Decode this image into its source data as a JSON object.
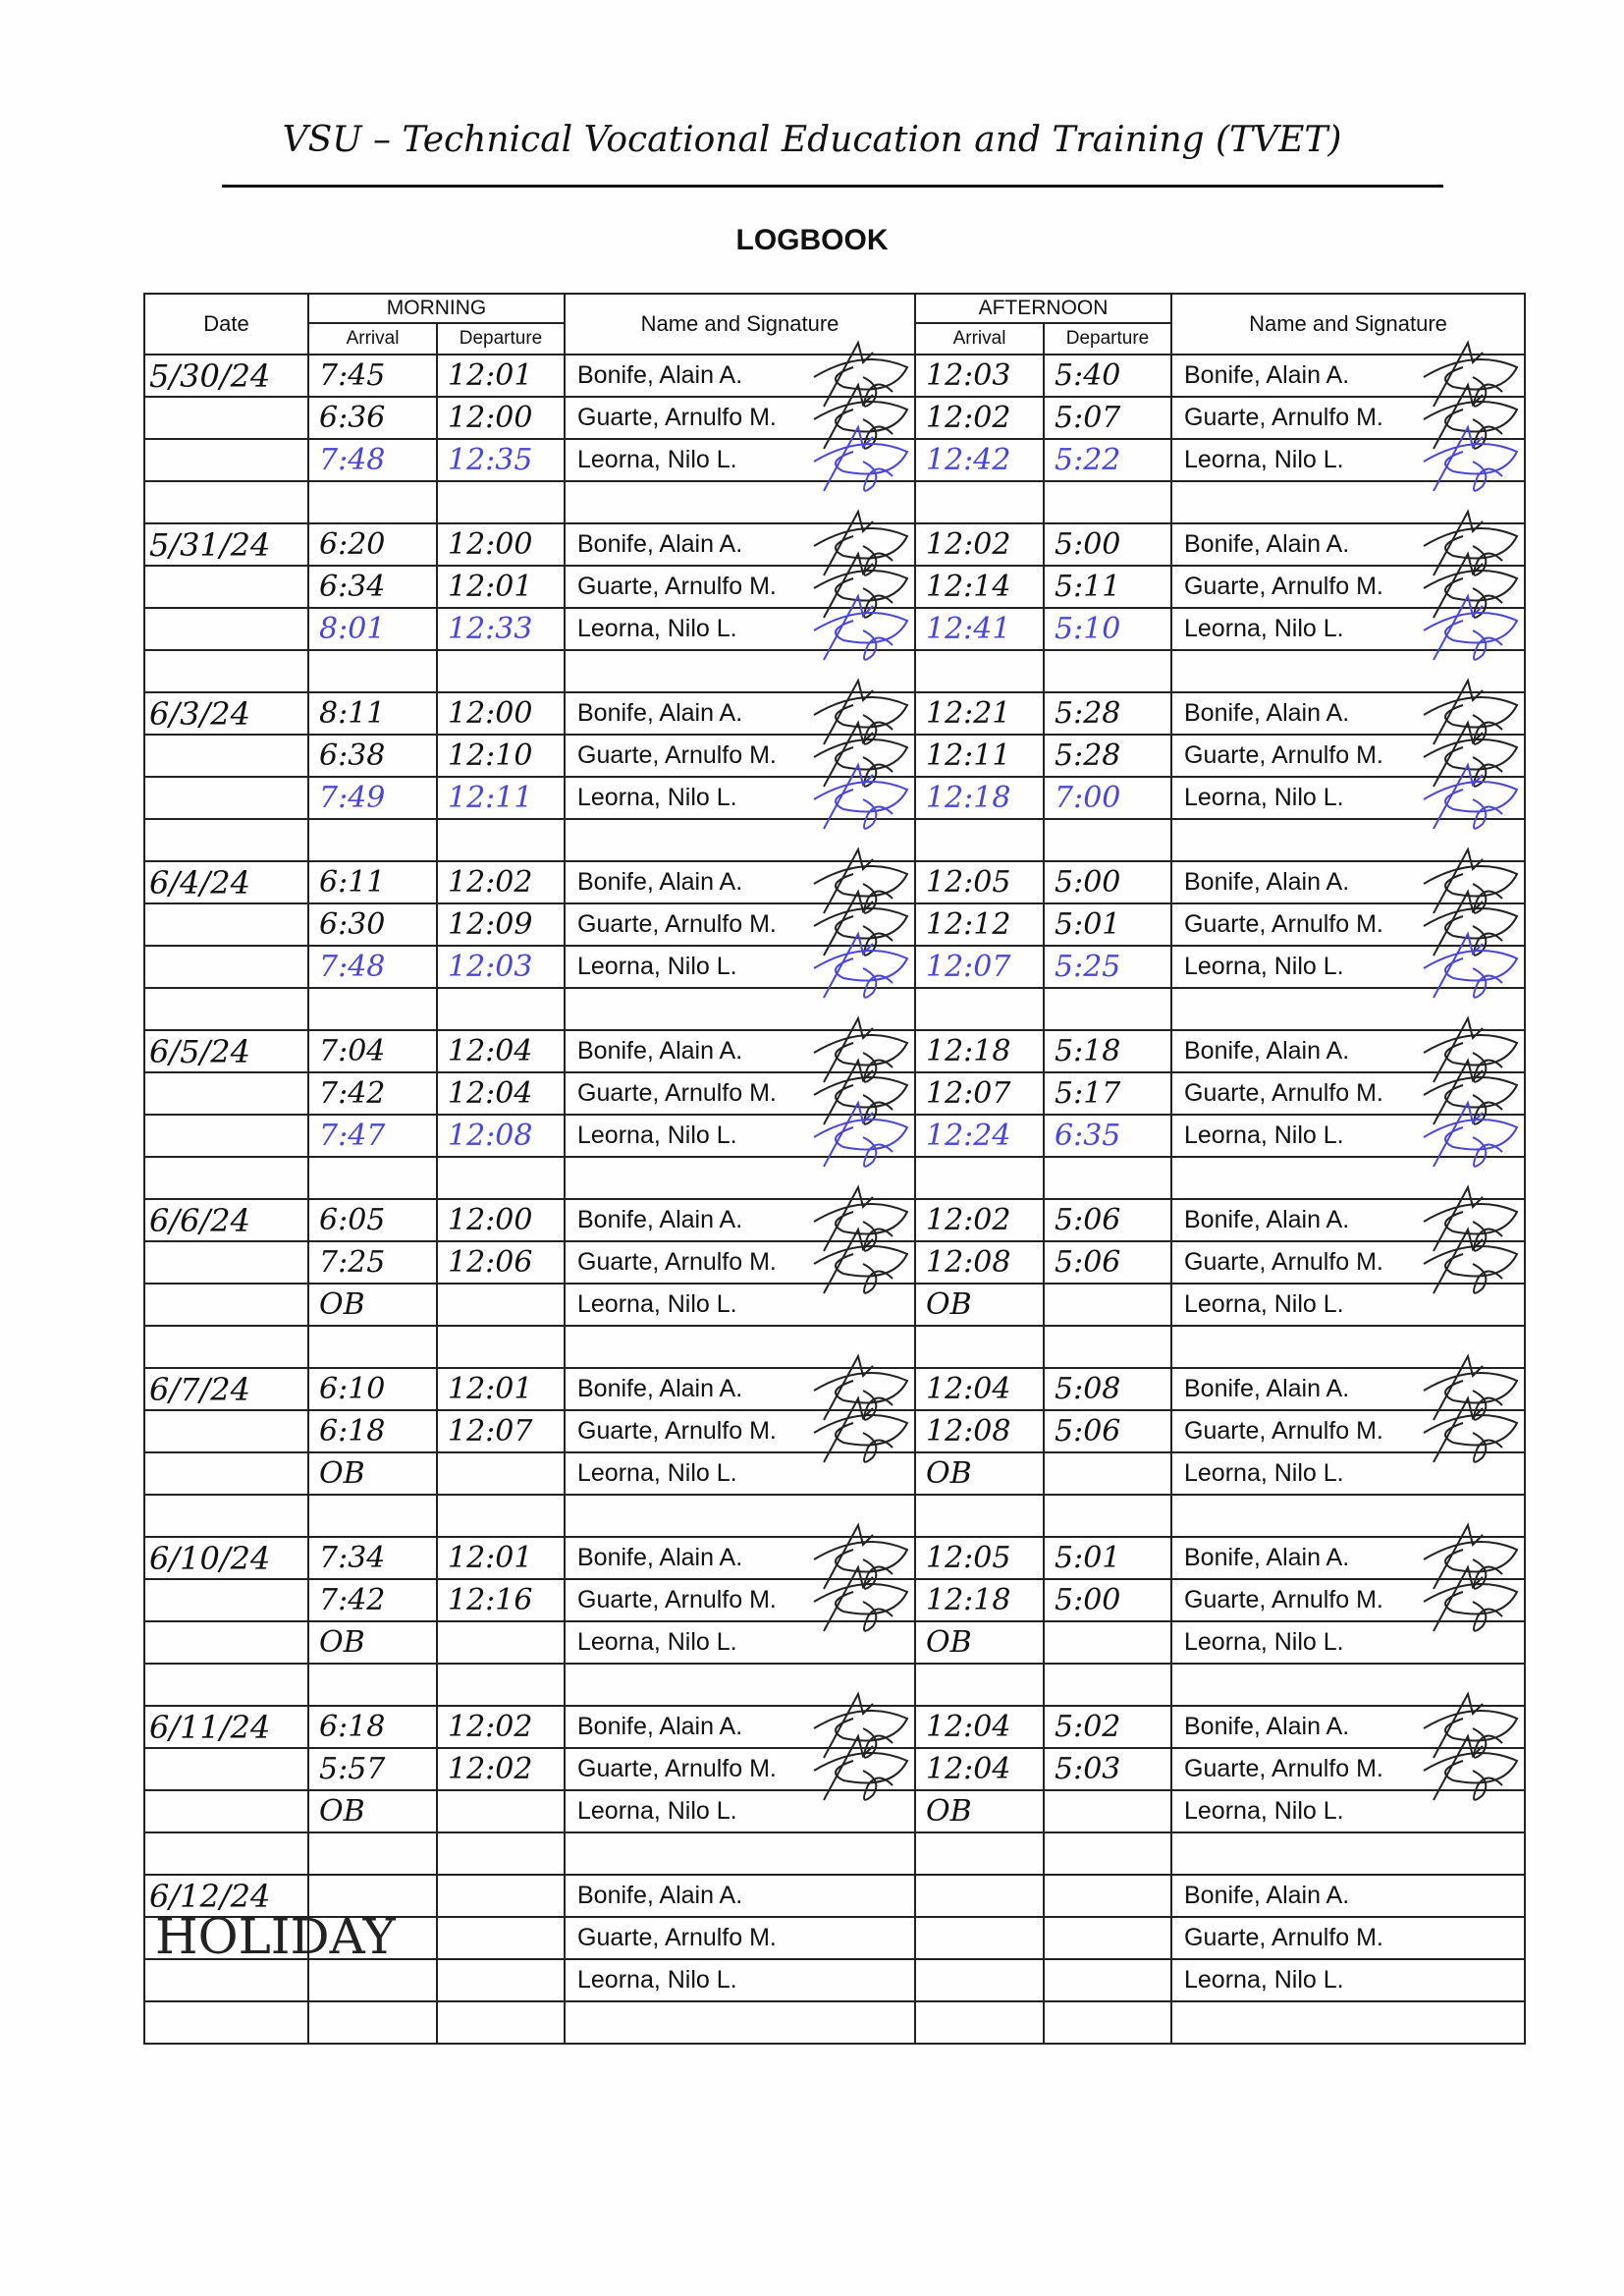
{
  "header": {
    "title": "VSU – Technical Vocational Education and Training (TVET)",
    "subtitle": "LOGBOOK"
  },
  "columns": {
    "date": "Date",
    "morning": "MORNING",
    "afternoon": "AFTERNOON",
    "arrival": "Arrival",
    "departure": "Departure",
    "name_sig": "Name and Signature"
  },
  "colors": {
    "black_ink": "#111111",
    "blue_ink": "#4b47d6"
  },
  "entries": [
    {
      "date": "5/30/24",
      "rows": [
        {
          "name": "Bonife, Alain A.",
          "am_arr": "7:45",
          "am_dep": "12:01",
          "pm_arr": "12:03",
          "pm_dep": "5:40",
          "ink": "black",
          "signed": true
        },
        {
          "name": "Guarte, Arnulfo M.",
          "am_arr": "6:36",
          "am_dep": "12:00",
          "pm_arr": "12:02",
          "pm_dep": "5:07",
          "ink": "black",
          "signed": true
        },
        {
          "name": "Leorna, Nilo L.",
          "am_arr": "7:48",
          "am_dep": "12:35",
          "pm_arr": "12:42",
          "pm_dep": "5:22",
          "ink": "blue",
          "signed": true
        }
      ]
    },
    {
      "date": "5/31/24",
      "rows": [
        {
          "name": "Bonife, Alain A.",
          "am_arr": "6:20",
          "am_dep": "12:00",
          "pm_arr": "12:02",
          "pm_dep": "5:00",
          "ink": "black",
          "signed": true
        },
        {
          "name": "Guarte, Arnulfo M.",
          "am_arr": "6:34",
          "am_dep": "12:01",
          "pm_arr": "12:14",
          "pm_dep": "5:11",
          "ink": "black",
          "signed": true
        },
        {
          "name": "Leorna, Nilo L.",
          "am_arr": "8:01",
          "am_dep": "12:33",
          "pm_arr": "12:41",
          "pm_dep": "5:10",
          "ink": "blue",
          "signed": true
        }
      ]
    },
    {
      "date": "6/3/24",
      "rows": [
        {
          "name": "Bonife, Alain A.",
          "am_arr": "8:11",
          "am_dep": "12:00",
          "pm_arr": "12:21",
          "pm_dep": "5:28",
          "ink": "black",
          "signed": true
        },
        {
          "name": "Guarte, Arnulfo M.",
          "am_arr": "6:38",
          "am_dep": "12:10",
          "pm_arr": "12:11",
          "pm_dep": "5:28",
          "ink": "black",
          "signed": true
        },
        {
          "name": "Leorna, Nilo L.",
          "am_arr": "7:49",
          "am_dep": "12:11",
          "pm_arr": "12:18",
          "pm_dep": "7:00",
          "ink": "blue",
          "signed": true
        }
      ]
    },
    {
      "date": "6/4/24",
      "rows": [
        {
          "name": "Bonife, Alain A.",
          "am_arr": "6:11",
          "am_dep": "12:02",
          "pm_arr": "12:05",
          "pm_dep": "5:00",
          "ink": "black",
          "signed": true
        },
        {
          "name": "Guarte, Arnulfo M.",
          "am_arr": "6:30",
          "am_dep": "12:09",
          "pm_arr": "12:12",
          "pm_dep": "5:01",
          "ink": "black",
          "signed": true
        },
        {
          "name": "Leorna, Nilo L.",
          "am_arr": "7:48",
          "am_dep": "12:03",
          "pm_arr": "12:07",
          "pm_dep": "5:25",
          "ink": "blue",
          "signed": true
        }
      ]
    },
    {
      "date": "6/5/24",
      "rows": [
        {
          "name": "Bonife, Alain A.",
          "am_arr": "7:04",
          "am_dep": "12:04",
          "pm_arr": "12:18",
          "pm_dep": "5:18",
          "ink": "black",
          "signed": true
        },
        {
          "name": "Guarte, Arnulfo M.",
          "am_arr": "7:42",
          "am_dep": "12:04",
          "pm_arr": "12:07",
          "pm_dep": "5:17",
          "ink": "black",
          "signed": true
        },
        {
          "name": "Leorna, Nilo L.",
          "am_arr": "7:47",
          "am_dep": "12:08",
          "pm_arr": "12:24",
          "pm_dep": "6:35",
          "ink": "blue",
          "signed": true
        }
      ]
    },
    {
      "date": "6/6/24",
      "rows": [
        {
          "name": "Bonife, Alain A.",
          "am_arr": "6:05",
          "am_dep": "12:00",
          "pm_arr": "12:02",
          "pm_dep": "5:06",
          "ink": "black",
          "signed": true
        },
        {
          "name": "Guarte, Arnulfo M.",
          "am_arr": "7:25",
          "am_dep": "12:06",
          "pm_arr": "12:08",
          "pm_dep": "5:06",
          "ink": "black",
          "signed": true
        },
        {
          "name": "Leorna, Nilo L.",
          "am_arr": "OB",
          "am_dep": "",
          "pm_arr": "OB",
          "pm_dep": "",
          "ink": "black",
          "signed": false
        }
      ]
    },
    {
      "date": "6/7/24",
      "rows": [
        {
          "name": "Bonife, Alain A.",
          "am_arr": "6:10",
          "am_dep": "12:01",
          "pm_arr": "12:04",
          "pm_dep": "5:08",
          "ink": "black",
          "signed": true
        },
        {
          "name": "Guarte, Arnulfo M.",
          "am_arr": "6:18",
          "am_dep": "12:07",
          "pm_arr": "12:08",
          "pm_dep": "5:06",
          "ink": "black",
          "signed": true
        },
        {
          "name": "Leorna, Nilo L.",
          "am_arr": "OB",
          "am_dep": "",
          "pm_arr": "OB",
          "pm_dep": "",
          "ink": "black",
          "signed": false
        }
      ]
    },
    {
      "date": "6/10/24",
      "rows": [
        {
          "name": "Bonife, Alain A.",
          "am_arr": "7:34",
          "am_dep": "12:01",
          "pm_arr": "12:05",
          "pm_dep": "5:01",
          "ink": "black",
          "signed": true
        },
        {
          "name": "Guarte, Arnulfo M.",
          "am_arr": "7:42",
          "am_dep": "12:16",
          "pm_arr": "12:18",
          "pm_dep": "5:00",
          "ink": "black",
          "signed": true
        },
        {
          "name": "Leorna, Nilo L.",
          "am_arr": "OB",
          "am_dep": "",
          "pm_arr": "OB",
          "pm_dep": "",
          "ink": "black",
          "signed": false
        }
      ]
    },
    {
      "date": "6/11/24",
      "rows": [
        {
          "name": "Bonife, Alain A.",
          "am_arr": "6:18",
          "am_dep": "12:02",
          "pm_arr": "12:04",
          "pm_dep": "5:02",
          "ink": "black",
          "signed": true
        },
        {
          "name": "Guarte, Arnulfo M.",
          "am_arr": "5:57",
          "am_dep": "12:02",
          "pm_arr": "12:04",
          "pm_dep": "5:03",
          "ink": "black",
          "signed": true
        },
        {
          "name": "Leorna, Nilo L.",
          "am_arr": "OB",
          "am_dep": "",
          "pm_arr": "OB",
          "pm_dep": "",
          "ink": "black",
          "signed": false
        }
      ]
    },
    {
      "date": "6/12/24",
      "note": "HOLIDAY",
      "rows": [
        {
          "name": "Bonife, Alain A.",
          "am_arr": "",
          "am_dep": "",
          "pm_arr": "",
          "pm_dep": "",
          "ink": "black",
          "signed": false
        },
        {
          "name": "Guarte, Arnulfo M.",
          "am_arr": "",
          "am_dep": "",
          "pm_arr": "",
          "pm_dep": "",
          "ink": "black",
          "signed": false
        },
        {
          "name": "Leorna, Nilo L.",
          "am_arr": "",
          "am_dep": "",
          "pm_arr": "",
          "pm_dep": "",
          "ink": "black",
          "signed": false
        }
      ]
    }
  ]
}
